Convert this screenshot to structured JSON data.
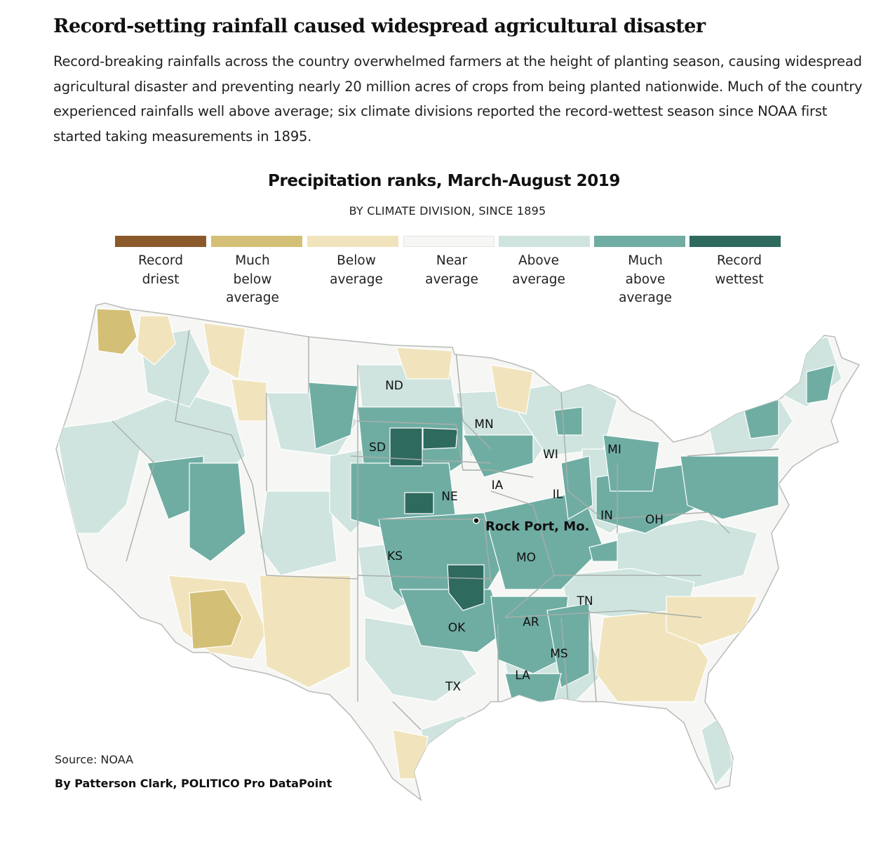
{
  "headline": "Record-setting rainfall caused widespread agricultural disaster",
  "dek": "Record-breaking rainfalls across the country overwhelmed farmers at the height of planting season, causing widespread agricultural disaster and preventing nearly 20 million acres of crops from being planted nationwide. Much of the country experienced rainfalls well above average; six climate divisions reported the record-wettest season since NOAA first started taking measurements in 1895.",
  "map": {
    "title": "Precipitation ranks, March-August 2019",
    "subtitle": "BY CLIMATE DIVISION, SINCE 1895",
    "legend": [
      {
        "label": "Record driest",
        "color": "#8a5a2b"
      },
      {
        "label": "Much below average",
        "color": "#d4bf76"
      },
      {
        "label": "Below average",
        "color": "#f1e4bd"
      },
      {
        "label": "Near average",
        "color": "#f6f7f5"
      },
      {
        "label": "Above average",
        "color": "#cfe4df"
      },
      {
        "label": "Much above average",
        "color": "#6fada3"
      },
      {
        "label": "Record wettest",
        "color": "#2f6a5f"
      }
    ],
    "state_labels": {
      "ND": "ND",
      "MN": "MN",
      "SD": "SD",
      "WI": "WI",
      "MI": "MI",
      "IA": "IA",
      "NE": "NE",
      "IL": "IL",
      "IN": "IN",
      "OH": "OH",
      "KS": "KS",
      "MO": "MO",
      "TN": "TN",
      "AR": "AR",
      "OK": "OK",
      "MS": "MS",
      "LA": "LA",
      "TX": "TX"
    },
    "city": "Rock Port, Mo."
  },
  "source": "Source: NOAA",
  "byline": "By Patterson Clark, POLITICO Pro DataPoint"
}
